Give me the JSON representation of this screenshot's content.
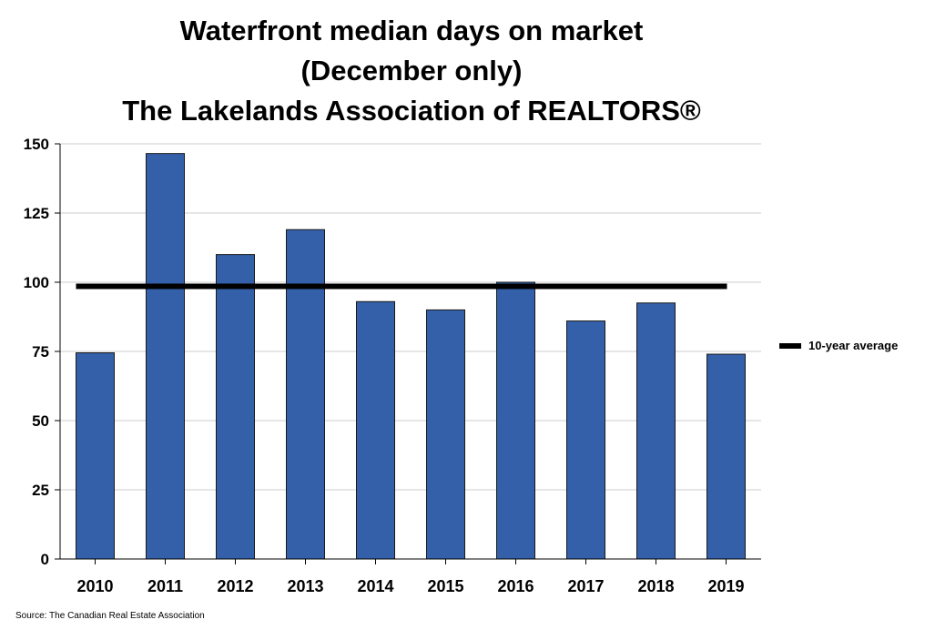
{
  "chart_data": {
    "type": "bar",
    "title_lines": [
      "Waterfront median days on market",
      "(December only)",
      "The Lakelands Association of REALTORS®"
    ],
    "categories": [
      "2010",
      "2011",
      "2012",
      "2013",
      "2014",
      "2015",
      "2016",
      "2017",
      "2018",
      "2019"
    ],
    "values": [
      74.5,
      146.5,
      110,
      119,
      93,
      90,
      100,
      86,
      92.5,
      74
    ],
    "reference_line": {
      "name": "10-year average",
      "value": 98.5
    },
    "ylim": [
      0,
      150
    ],
    "yticks": [
      0,
      25,
      50,
      75,
      100,
      125,
      150
    ],
    "grid": true,
    "legend_position": "right",
    "bar_color": "#3460a9",
    "line_color": "#000000"
  },
  "source": "Source: The Canadian Real Estate Association"
}
